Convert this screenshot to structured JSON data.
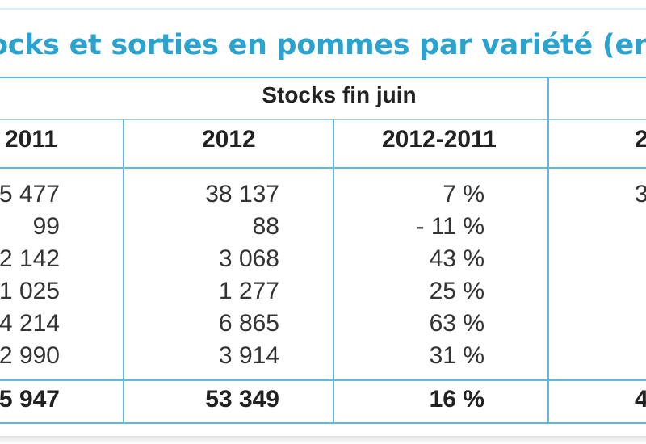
{
  "title": "ocks et sorties en pommes par variété (en tonn",
  "group_headers": {
    "stocks": "Stocks fin juin"
  },
  "columns": {
    "c1": "2011",
    "c2": "2012",
    "c3": "2012-2011",
    "c4": "2"
  },
  "rows": [
    {
      "c1": "5 477",
      "c2": "38 137",
      "c3": "7 %",
      "c4": "3"
    },
    {
      "c1": "99",
      "c2": "88",
      "c3": "- 11 %",
      "c4": ""
    },
    {
      "c1": "2 142",
      "c2": "3 068",
      "c3": "43 %",
      "c4": ""
    },
    {
      "c1": "1 025",
      "c2": "1 277",
      "c3": "25  %",
      "c4": ""
    },
    {
      "c1": "4 214",
      "c2": "6 865",
      "c3": "63 %",
      "c4": ""
    },
    {
      "c1": "2 990",
      "c2": "3 914",
      "c3": "31 %",
      "c4": ""
    }
  ],
  "total": {
    "c1": "5 947",
    "c2": "53 349",
    "c3": "16 %",
    "c4": "4"
  },
  "colors": {
    "title": "#2ba3cf",
    "rules": "#5fb8de"
  }
}
